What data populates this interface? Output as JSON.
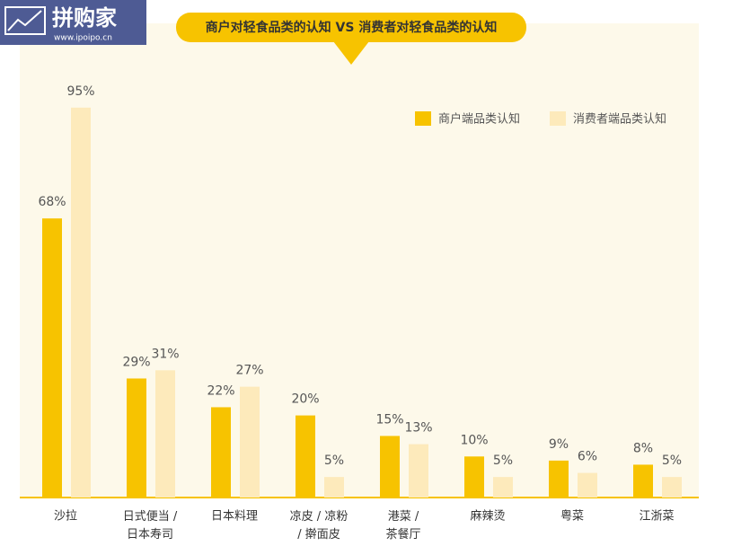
{
  "logo": {
    "name": "拼购家",
    "url": "www.ipoipo.cn"
  },
  "chart_data": {
    "type": "bar",
    "title": "商户对轻食品类的认知 VS 消费者对轻食品类的认知",
    "categories": [
      "沙拉",
      "日式便当 /\n日本寿司",
      "日本料理",
      "凉皮 / 凉粉\n/ 擀面皮",
      "港菜 /\n茶餐厅",
      "麻辣烫",
      "粤菜",
      "江浙菜"
    ],
    "series": [
      {
        "name": "商户端品类认知",
        "color": "#f7c300",
        "values": [
          68,
          29,
          22,
          20,
          15,
          10,
          9,
          8
        ],
        "value_labels": [
          "68%",
          "29%",
          "22%",
          "20%",
          "15%",
          "10%",
          "9%",
          "8%"
        ]
      },
      {
        "name": "消费者端品类认知",
        "color": "#fdeabb",
        "values": [
          95,
          31,
          27,
          5,
          13,
          5,
          6,
          5
        ],
        "value_labels": [
          "95%",
          "31%",
          "27%",
          "5%",
          "13%",
          "5%",
          "6%",
          "5%"
        ]
      }
    ],
    "ylim": [
      0,
      100
    ],
    "legend": "top-right"
  }
}
